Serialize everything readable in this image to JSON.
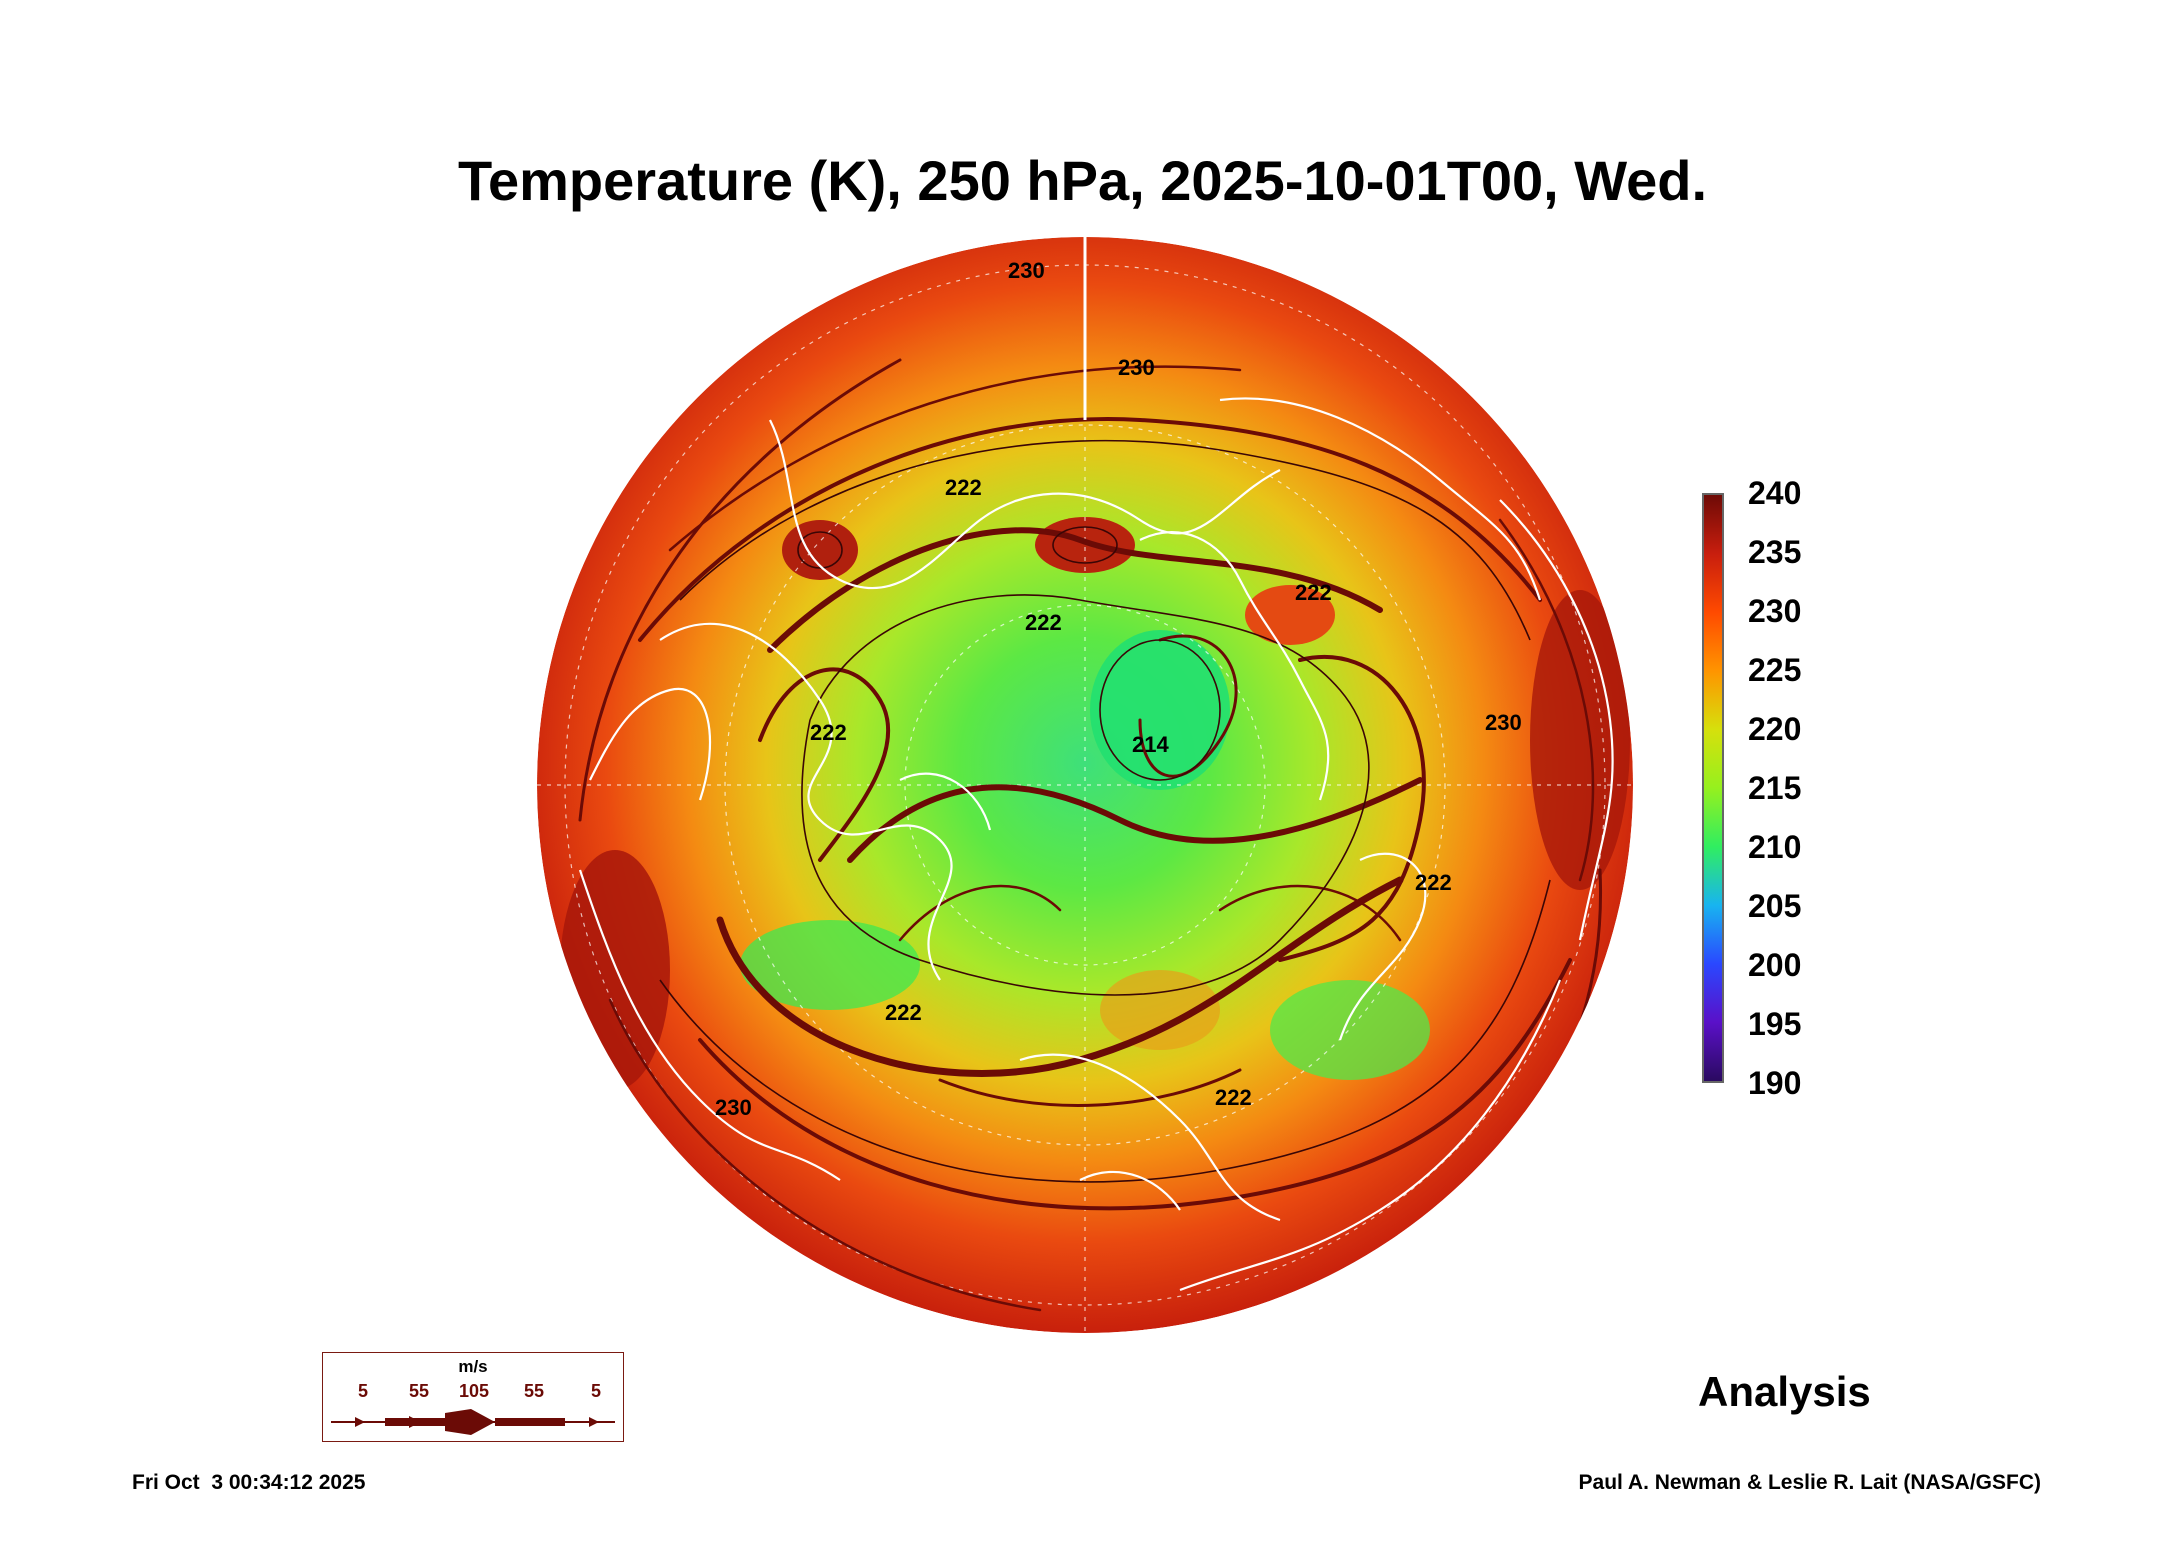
{
  "title": "Temperature (K), 250 hPa, 2025-10-01T00, Wed.",
  "colorbar": {
    "ticks": [
      "240",
      "235",
      "230",
      "225",
      "220",
      "215",
      "210",
      "205",
      "200",
      "195",
      "190"
    ],
    "range": [
      190,
      240
    ]
  },
  "contour_labels": [
    "230",
    "230",
    "222",
    "222",
    "214",
    "222",
    "222",
    "222",
    "222",
    "222",
    "230",
    "230"
  ],
  "wind_legend": {
    "unit": "m/s",
    "speeds": [
      "5",
      "55",
      "105",
      "55",
      "5"
    ]
  },
  "analysis_label": "Analysis",
  "timestamp": "Fri Oct  3 00:34:12 2025",
  "credit": "Paul A. Newman & Leslie R. Lait (NASA/GSFC)",
  "colors": {
    "outer_warm": "#d8280e",
    "mid": "#f08a10",
    "cold_core": "#30e060",
    "streamline": "#6b0b06",
    "coastline": "#ffffff"
  }
}
